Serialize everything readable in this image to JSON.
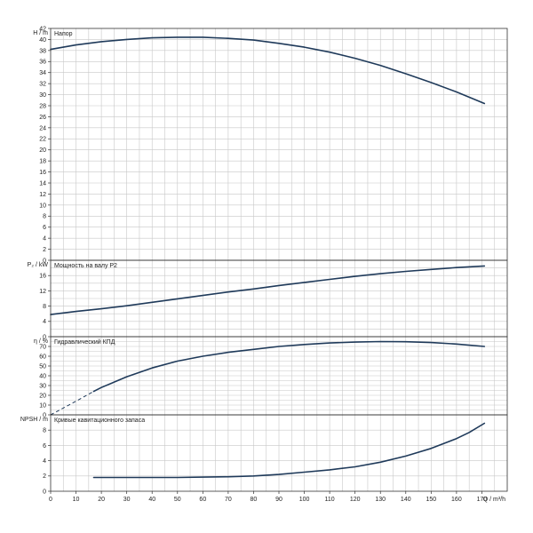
{
  "chart_data": [
    {
      "type": "line",
      "title": "Напор",
      "ylabel": "H / m",
      "xlim": [
        0,
        180
      ],
      "ylim": [
        0,
        42
      ],
      "yticks": [
        0,
        2,
        4,
        6,
        8,
        10,
        12,
        14,
        16,
        18,
        20,
        22,
        24,
        26,
        28,
        30,
        32,
        34,
        36,
        38,
        40,
        42
      ],
      "grid": true,
      "series": [
        {
          "x": [
            0,
            10,
            20,
            30,
            40,
            50,
            60,
            70,
            80,
            90,
            100,
            110,
            120,
            130,
            140,
            150,
            160,
            171
          ],
          "y": [
            38.2,
            39.0,
            39.6,
            40.0,
            40.3,
            40.4,
            40.4,
            40.2,
            39.9,
            39.3,
            38.6,
            37.7,
            36.6,
            35.3,
            33.8,
            32.2,
            30.5,
            28.4
          ]
        }
      ]
    },
    {
      "type": "line",
      "title": "Мощность на валу P2",
      "ylabel": "P₂ / kW",
      "xlim": [
        0,
        180
      ],
      "ylim": [
        0,
        20
      ],
      "yticks": [
        0,
        4,
        8,
        12,
        16
      ],
      "grid": true,
      "series": [
        {
          "x": [
            0,
            10,
            20,
            30,
            40,
            50,
            60,
            70,
            80,
            90,
            100,
            110,
            120,
            130,
            140,
            150,
            160,
            171
          ],
          "y": [
            5.8,
            6.6,
            7.3,
            8.1,
            9.0,
            9.9,
            10.8,
            11.7,
            12.5,
            13.4,
            14.2,
            15.0,
            15.8,
            16.5,
            17.1,
            17.6,
            18.1,
            18.5
          ]
        }
      ]
    },
    {
      "type": "line",
      "title": "Гидравлический КПД",
      "ylabel": "η / %",
      "xlim": [
        0,
        180
      ],
      "ylim": [
        0,
        80
      ],
      "yticks": [
        0,
        10,
        20,
        30,
        40,
        50,
        60,
        70
      ],
      "grid": true,
      "series": [
        {
          "style": "dashed",
          "x": [
            0,
            5,
            10,
            17
          ],
          "y": [
            0,
            7,
            14,
            24
          ]
        },
        {
          "x": [
            17,
            20,
            30,
            40,
            50,
            60,
            70,
            80,
            90,
            100,
            110,
            120,
            130,
            140,
            150,
            160,
            171
          ],
          "y": [
            24,
            28,
            39,
            48,
            55,
            60,
            64,
            67,
            70,
            72,
            73.5,
            74.5,
            75,
            74.8,
            74,
            72.5,
            70
          ]
        }
      ]
    },
    {
      "type": "line",
      "title": "Кривые кавитационного запаса",
      "ylabel": "NPSH / m",
      "xlabel": "Q / m³/h",
      "xlim": [
        0,
        180
      ],
      "ylim": [
        0,
        10
      ],
      "yticks": [
        0,
        2,
        4,
        6,
        8
      ],
      "xticks": [
        0,
        10,
        20,
        30,
        40,
        50,
        60,
        70,
        80,
        90,
        100,
        110,
        120,
        130,
        140,
        150,
        160,
        170
      ],
      "grid": true,
      "series": [
        {
          "x": [
            17,
            30,
            40,
            50,
            60,
            70,
            80,
            90,
            100,
            110,
            120,
            130,
            140,
            150,
            160,
            165,
            171
          ],
          "y": [
            1.8,
            1.8,
            1.8,
            1.8,
            1.85,
            1.9,
            2.0,
            2.2,
            2.5,
            2.8,
            3.2,
            3.8,
            4.6,
            5.6,
            6.9,
            7.7,
            8.9
          ]
        }
      ]
    }
  ]
}
